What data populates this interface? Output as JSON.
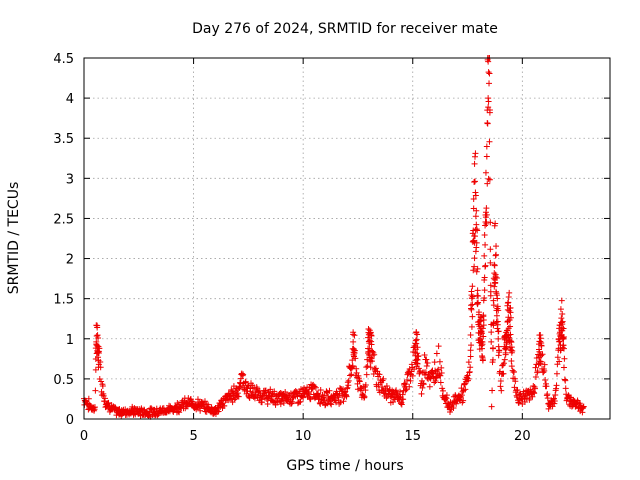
{
  "chart_data": {
    "type": "scatter",
    "title": "Day 276 of 2024, SRMTID for receiver mate",
    "xlabel": "GPS time / hours",
    "ylabel": "SRMTID / TECUs",
    "xlim": [
      0,
      24
    ],
    "ylim": [
      0,
      4.5
    ],
    "xticks": [
      0,
      5,
      10,
      15,
      20
    ],
    "yticks": [
      0,
      0.5,
      1,
      1.5,
      2,
      2.5,
      3,
      3.5,
      4,
      4.5
    ],
    "xtick_labels": [
      "0",
      "5",
      "10",
      "15",
      "20"
    ],
    "ytick_labels": [
      "0",
      "0.5",
      "1",
      "1.5",
      "2",
      "2.5",
      "3",
      "3.5",
      "4",
      "4.5"
    ],
    "grid": true,
    "marker": "+",
    "color": "#ee0000",
    "series": [
      {
        "name": "SRMTID",
        "anchors": [
          [
            0.0,
            0.25
          ],
          [
            0.3,
            0.15
          ],
          [
            0.5,
            0.12
          ],
          [
            0.55,
            0.97
          ],
          [
            0.65,
            0.9
          ],
          [
            0.8,
            0.45
          ],
          [
            1.0,
            0.2
          ],
          [
            1.5,
            0.08
          ],
          [
            2.0,
            0.1
          ],
          [
            3.0,
            0.08
          ],
          [
            4.0,
            0.12
          ],
          [
            4.5,
            0.18
          ],
          [
            5.0,
            0.2
          ],
          [
            5.5,
            0.15
          ],
          [
            6.0,
            0.1
          ],
          [
            6.5,
            0.25
          ],
          [
            7.0,
            0.35
          ],
          [
            7.2,
            0.5
          ],
          [
            7.5,
            0.35
          ],
          [
            8.0,
            0.3
          ],
          [
            9.0,
            0.25
          ],
          [
            10.0,
            0.3
          ],
          [
            10.5,
            0.35
          ],
          [
            11.0,
            0.25
          ],
          [
            11.5,
            0.28
          ],
          [
            12.0,
            0.35
          ],
          [
            12.3,
            0.9
          ],
          [
            12.5,
            0.45
          ],
          [
            12.8,
            0.3
          ],
          [
            13.0,
            1.0
          ],
          [
            13.3,
            0.55
          ],
          [
            13.6,
            0.4
          ],
          [
            14.0,
            0.3
          ],
          [
            14.5,
            0.25
          ],
          [
            15.0,
            0.7
          ],
          [
            15.2,
            0.9
          ],
          [
            15.4,
            0.35
          ],
          [
            15.6,
            0.8
          ],
          [
            15.8,
            0.45
          ],
          [
            16.0,
            0.6
          ],
          [
            16.2,
            0.75
          ],
          [
            16.4,
            0.3
          ],
          [
            16.7,
            0.15
          ],
          [
            17.0,
            0.25
          ],
          [
            17.3,
            0.3
          ],
          [
            17.6,
            0.6
          ],
          [
            17.85,
            2.9
          ],
          [
            18.0,
            1.2
          ],
          [
            18.2,
            0.9
          ],
          [
            18.4,
            3.5
          ],
          [
            18.5,
            4.25
          ],
          [
            18.6,
            0.15
          ],
          [
            18.75,
            2.1
          ],
          [
            19.0,
            0.4
          ],
          [
            19.2,
            0.9
          ],
          [
            19.4,
            1.35
          ],
          [
            19.6,
            0.5
          ],
          [
            19.8,
            0.3
          ],
          [
            20.0,
            0.25
          ],
          [
            20.5,
            0.35
          ],
          [
            20.8,
            0.9
          ],
          [
            21.0,
            0.6
          ],
          [
            21.2,
            0.15
          ],
          [
            21.5,
            0.25
          ],
          [
            21.8,
            1.3
          ],
          [
            22.0,
            0.3
          ],
          [
            22.3,
            0.2
          ],
          [
            22.5,
            0.2
          ],
          [
            22.8,
            0.12
          ]
        ]
      }
    ]
  }
}
